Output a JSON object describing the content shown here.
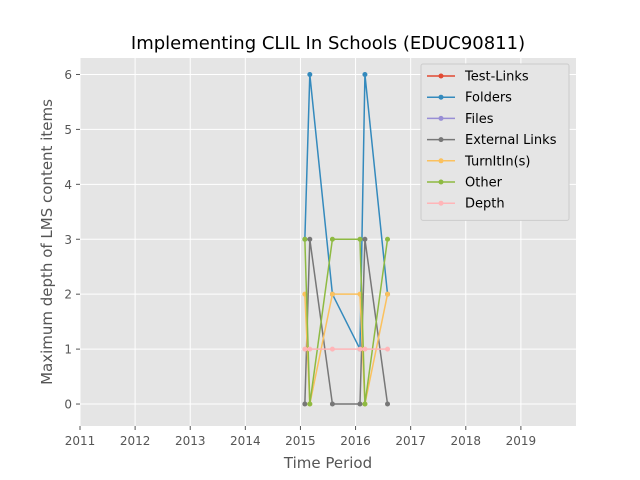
{
  "chart_data": {
    "type": "line",
    "title": "Implementing CLIL In Schools (EDUC90811)",
    "xlabel": "Time Period",
    "ylabel": "Maximum depth of LMS content items",
    "xlim": [
      2011,
      2020
    ],
    "ylim": [
      -0.4,
      6.3
    ],
    "xticks": [
      2011,
      2012,
      2013,
      2014,
      2015,
      2016,
      2017,
      2018,
      2019
    ],
    "yticks": [
      0,
      1,
      2,
      3,
      4,
      5,
      6
    ],
    "grid": true,
    "legend_position": "top-right",
    "series": [
      {
        "name": "Test-Links",
        "color": "#e24a33",
        "x": [],
        "y": []
      },
      {
        "name": "Folders",
        "color": "#348abd",
        "x": [
          2015.08,
          2015.17,
          2015.58,
          2016.08,
          2016.17,
          2016.58
        ],
        "y": [
          3,
          6,
          2,
          1,
          6,
          2
        ]
      },
      {
        "name": "Files",
        "color": "#988ed5",
        "x": [],
        "y": []
      },
      {
        "name": "External Links",
        "color": "#777777",
        "x": [
          2015.08,
          2015.17,
          2015.58,
          2016.08,
          2016.17,
          2016.58
        ],
        "y": [
          0,
          3,
          0,
          0,
          3,
          0
        ]
      },
      {
        "name": "TurnItIn(s)",
        "color": "#fbc15e",
        "x": [
          2015.08,
          2015.17,
          2015.58,
          2016.08,
          2016.17,
          2016.58
        ],
        "y": [
          2,
          0,
          2,
          2,
          0,
          2
        ]
      },
      {
        "name": "Other",
        "color": "#8eba42",
        "x": [
          2015.08,
          2015.17,
          2015.58,
          2016.08,
          2016.17,
          2016.58
        ],
        "y": [
          3,
          0,
          3,
          3,
          0,
          3
        ]
      },
      {
        "name": "Depth",
        "color": "#ffb5b8",
        "x": [
          2015.08,
          2015.17,
          2015.58,
          2016.08,
          2016.17,
          2016.58
        ],
        "y": [
          1,
          1,
          1,
          1,
          1,
          1
        ]
      }
    ]
  }
}
